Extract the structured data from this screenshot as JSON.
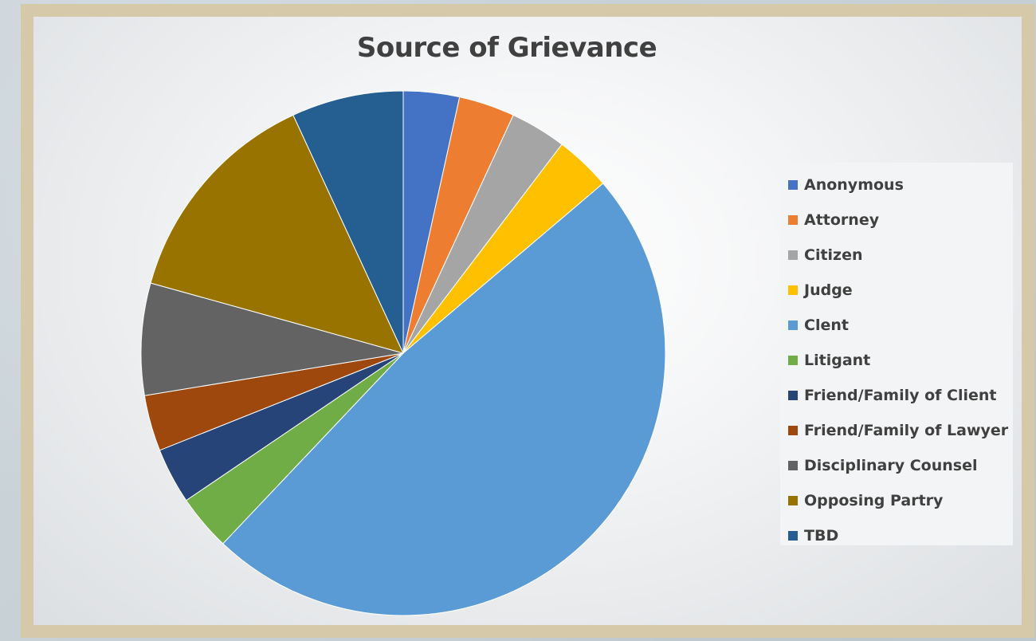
{
  "chart_data": {
    "type": "pie",
    "title": "Source of Grievance",
    "legend_position": "right",
    "slices": [
      {
        "label": "Anonymous",
        "value": 1,
        "color": "#4472c4"
      },
      {
        "label": "Attorney",
        "value": 1,
        "color": "#ed7d31"
      },
      {
        "label": "Citizen",
        "value": 1,
        "color": "#a5a5a5"
      },
      {
        "label": "Judge",
        "value": 1,
        "color": "#ffc000"
      },
      {
        "label": "Clent",
        "value": 14,
        "color": "#5b9bd5"
      },
      {
        "label": "Litigant",
        "value": 1,
        "color": "#70ad47"
      },
      {
        "label": "Friend/Family of Client",
        "value": 1,
        "color": "#264478"
      },
      {
        "label": "Friend/Family of Lawyer",
        "value": 1,
        "color": "#9e480e"
      },
      {
        "label": "Disciplinary Counsel",
        "value": 2,
        "color": "#636363"
      },
      {
        "label": "Opposing Partry",
        "value": 4,
        "color": "#997300"
      },
      {
        "label": "TBD",
        "value": 2,
        "color": "#255e91"
      }
    ]
  }
}
